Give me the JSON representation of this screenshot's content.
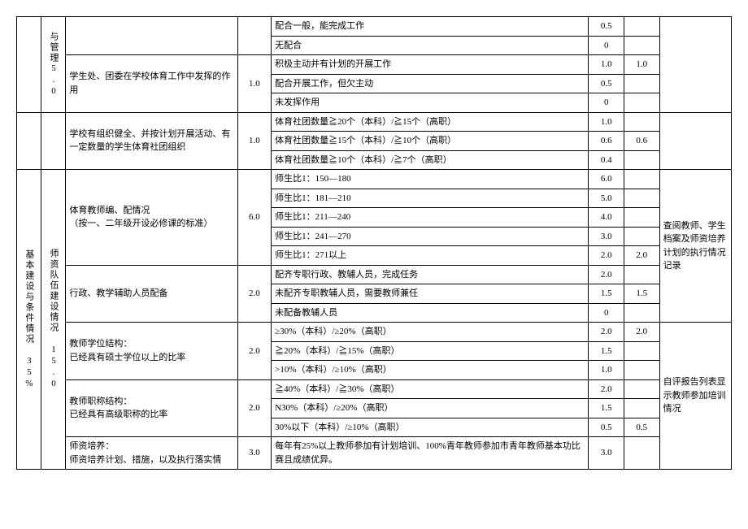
{
  "section1": {
    "rowLabel": "与管理5.0",
    "r1": {
      "crit": "配合一般，能完成工作",
      "score": "0.5"
    },
    "r2": {
      "crit": "无配合",
      "score": "0"
    },
    "group": {
      "desc": "学生处、团委在学校体育工作中发挥的作用",
      "pts": "1.0",
      "rA": {
        "crit": "积极主动并有计划的开展工作",
        "score": "1.0",
        "actual": "1.0"
      },
      "rB": {
        "crit": "配合开展工作，但欠主动",
        "score": "0.5"
      },
      "rC": {
        "crit": "未发挥作用",
        "score": "0"
      }
    }
  },
  "section2": {
    "desc": "学校有组织健全、并按计划开展活动、有一定数量的学生体育社团组织",
    "pts": "1.0",
    "rA": {
      "crit": "体育社团数量≧20个（本科）/≧15个（高职）",
      "score": "1.0"
    },
    "rB": {
      "crit": "体育社团数量≧15个（本科）/≧10个（高职）",
      "score": "0.6",
      "actual": "0.6"
    },
    "rC": {
      "crit": "体育社团数量≧10个（本科）/≧7个（高职）",
      "score": "0.4"
    }
  },
  "section3": {
    "leftLabel": "基本建设与条件情况 35%",
    "midLabel": "师资队伍建设情况 15.0",
    "g1": {
      "desc": "体育教师编、配情况\n（按一、二年级开设必修课的标准）",
      "pts": "6.0",
      "rA": {
        "crit": "师生比1：150—180",
        "score": "6.0"
      },
      "rB": {
        "crit": "师生比1：181—210",
        "score": "5.0"
      },
      "rC": {
        "crit": "师生比1：211—240",
        "score": "4.0"
      },
      "rD": {
        "crit": "师生比1：241—270",
        "score": "3.0"
      },
      "rE": {
        "crit": "师生比1：271以上",
        "score": "2.0",
        "actual": "2.0"
      }
    },
    "g2": {
      "desc": "行政、教学辅助人员配备",
      "pts": "2.0",
      "rA": {
        "crit": "配齐专职行政、教辅人员，完成任务",
        "score": "2.0"
      },
      "rB": {
        "crit": "未配齐专职教辅人员，需要教师兼任",
        "score": "1.5",
        "actual": "1.5"
      },
      "rC": {
        "crit": "未配备教辅人员",
        "score": "0"
      }
    },
    "g3": {
      "desc": "教师学位结构：\n已经具有硕士学位以上的比率",
      "pts": "2.0",
      "rA": {
        "crit": "≥30%（本科）/≥20%（高职）",
        "score": "2.0",
        "actual": "2.0"
      },
      "rB": {
        "crit": "≧20%（本科）/≧15%（高职）",
        "score": "1.5"
      },
      "rC": {
        "crit": ">10%（本科）/≥10%（高职）",
        "score": "1.0"
      }
    },
    "g4": {
      "desc": "教师职称结构：\n已经具有高级职称的比率",
      "pts": "2.0",
      "rA": {
        "crit": "≧40%（本科）/≧30%（高职）",
        "score": "2.0"
      },
      "rB": {
        "crit": "N30%（本科）/≥20%（高职）",
        "score": "1.5"
      },
      "rC": {
        "crit": "30%以下（本科）/≥10%（高职）",
        "score": "0.5",
        "actual": "0.5"
      }
    },
    "g5": {
      "desc": "师资培养：\n师资培养计划、措施，以及执行落实情",
      "pts": "3.0",
      "rA": {
        "crit": "每年有25%以上教师参加有计划培训、100%青年教师参加市青年教师基本功比赛且成绩优异。",
        "score": "3.0"
      }
    },
    "notes1": "查阅教师、学生档案及师资培养计划的执行情况记录",
    "notes2": "自评报告列表显示教师参加培训情况"
  }
}
